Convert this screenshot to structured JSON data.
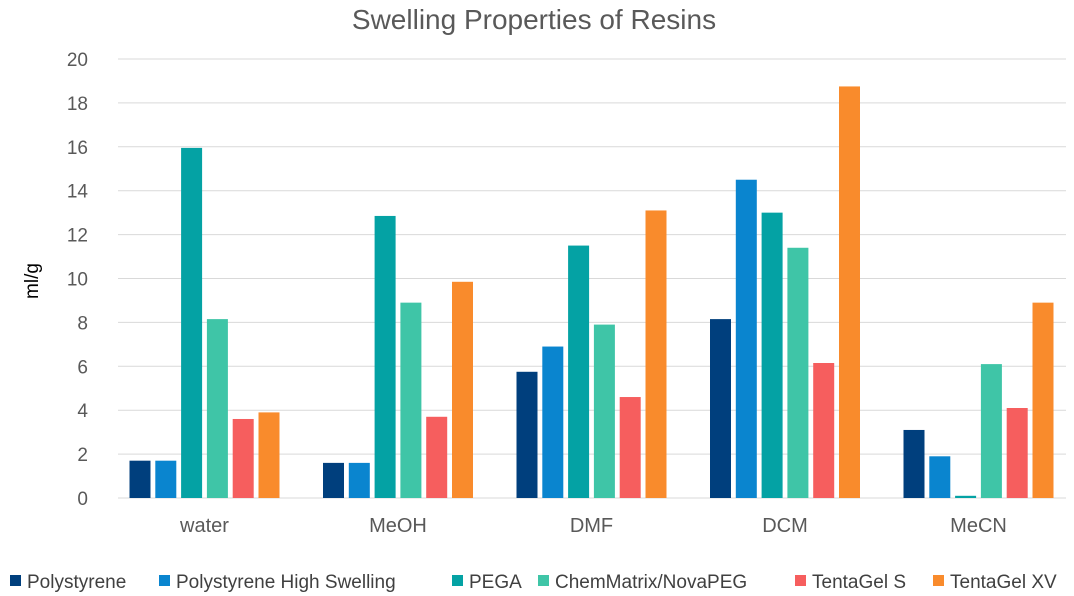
{
  "chart_data": {
    "type": "bar",
    "title": "Swelling Properties of Resins",
    "xlabel": "",
    "ylabel": "ml/g",
    "ylim": [
      0,
      20
    ],
    "y_ticks": [
      0,
      2,
      4,
      6,
      8,
      10,
      12,
      14,
      16,
      18,
      20
    ],
    "grid": true,
    "legend_position": "bottom",
    "categories": [
      "water",
      "MeOH",
      "DMF",
      "DCM",
      "MeCN"
    ],
    "series": [
      {
        "name": "Polystyrene",
        "color": "#003f7d",
        "values": [
          1.7,
          1.6,
          5.75,
          8.15,
          3.1
        ]
      },
      {
        "name": "Polystyrene High Swelling",
        "color": "#0a85cf",
        "values": [
          1.7,
          1.6,
          6.9,
          14.5,
          1.9
        ]
      },
      {
        "name": "PEGA",
        "color": "#04a2a4",
        "values": [
          15.95,
          12.85,
          11.5,
          13.0,
          0.1
        ]
      },
      {
        "name": "ChemMatrix/NovaPEG",
        "color": "#3fc5a7",
        "values": [
          8.15,
          8.9,
          7.9,
          11.4,
          6.1
        ]
      },
      {
        "name": "TentaGel S",
        "color": "#f65e5e",
        "values": [
          3.6,
          3.7,
          4.6,
          6.15,
          4.1
        ]
      },
      {
        "name": "TentaGel XV",
        "color": "#f98b2c",
        "values": [
          3.9,
          9.85,
          13.1,
          18.75,
          8.9
        ]
      }
    ]
  }
}
